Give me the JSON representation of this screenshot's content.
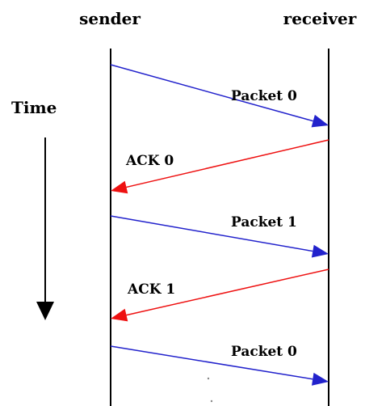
{
  "header": {
    "sender_label": "sender",
    "receiver_label": "receiver"
  },
  "time_axis": {
    "label": "Time"
  },
  "colors": {
    "packet_arrow": "#2222cc",
    "ack_arrow": "#ee1111",
    "lifeline": "#000000",
    "text": "#000000"
  },
  "messages": [
    {
      "label": "Packet 0",
      "direction": "sender-to-receiver",
      "type": "packet"
    },
    {
      "label": "ACK 0",
      "direction": "receiver-to-sender",
      "type": "ack"
    },
    {
      "label": "Packet 1",
      "direction": "sender-to-receiver",
      "type": "packet"
    },
    {
      "label": "ACK 1",
      "direction": "receiver-to-sender",
      "type": "ack"
    },
    {
      "label": "Packet 0",
      "direction": "sender-to-receiver",
      "type": "packet"
    }
  ]
}
